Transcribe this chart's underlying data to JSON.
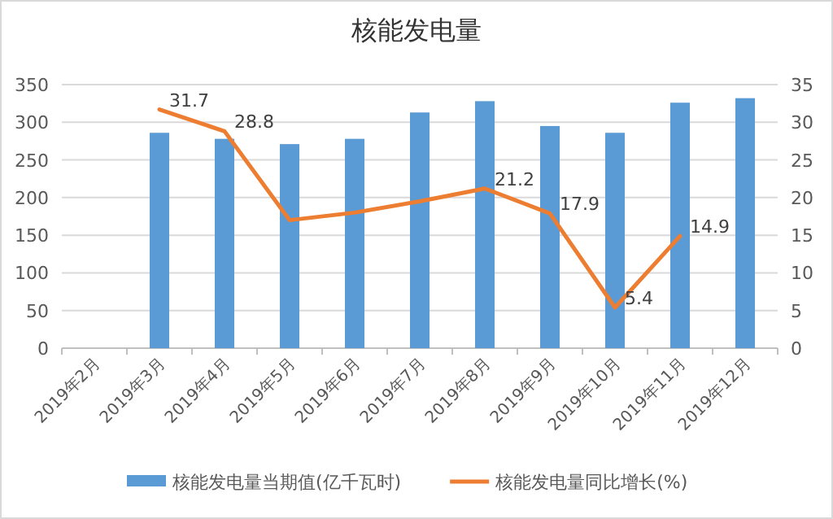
{
  "chart_data": {
    "type": "bar",
    "title": "核能发电量",
    "categories": [
      "2019年2月",
      "2019年3月",
      "2019年4月",
      "2019年5月",
      "2019年6月",
      "2019年7月",
      "2019年8月",
      "2019年9月",
      "2019年10月",
      "2019年11月",
      "2019年12月"
    ],
    "series": [
      {
        "name": "核能发电量当期值(亿千瓦时)",
        "color": "#5b9bd5",
        "values": [
          null,
          286,
          278,
          271,
          278,
          313,
          328,
          295,
          286,
          326,
          332
        ]
      },
      {
        "name": "核能发电量同比增长(%)",
        "type": "line",
        "axis": "y2",
        "color": "#ed7d31",
        "values": [
          null,
          31.7,
          28.8,
          17,
          18,
          19.5,
          21.2,
          17.9,
          5.4,
          14.9,
          null
        ],
        "value_labels": [
          null,
          "31.7",
          "28.8",
          null,
          null,
          null,
          "21.2",
          "17.9",
          "5.4",
          "14.9",
          null
        ]
      }
    ],
    "ylim": [
      0,
      350
    ],
    "yticks": [
      0,
      50,
      100,
      150,
      200,
      250,
      300,
      350
    ],
    "y2lim": [
      0,
      35
    ],
    "y2ticks": [
      0,
      5,
      10,
      15,
      20,
      25,
      30,
      35
    ],
    "grid": "y",
    "legend": "bottom"
  }
}
